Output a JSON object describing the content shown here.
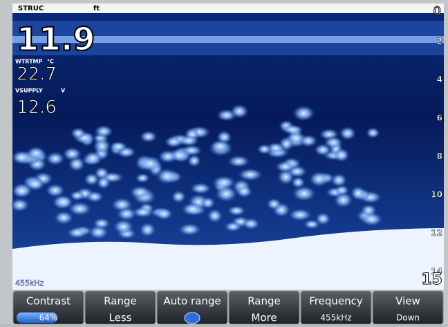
{
  "header": {
    "mode": "STRUC",
    "unit": "ft",
    "range_top": "0"
  },
  "readouts": [
    {
      "value": "11.9"
    },
    {
      "label": "WTRTMP",
      "unit": "°C",
      "value": "22.7"
    },
    {
      "label": "VSUPPLY",
      "unit": "V",
      "value": "12.6"
    }
  ],
  "depth_scale": [
    "2",
    "4",
    "6",
    "8",
    "10",
    "12",
    "14"
  ],
  "range_bottom": "15",
  "frequency_label": "455kHz",
  "menu": [
    {
      "title": "Contrast",
      "value": "64%"
    },
    {
      "title": "Range",
      "value": "Less"
    },
    {
      "title": "Auto range"
    },
    {
      "title": "Range",
      "value": "More"
    },
    {
      "title": "Frequency",
      "value": "455kHz"
    },
    {
      "title": "View",
      "value": "Down"
    }
  ]
}
